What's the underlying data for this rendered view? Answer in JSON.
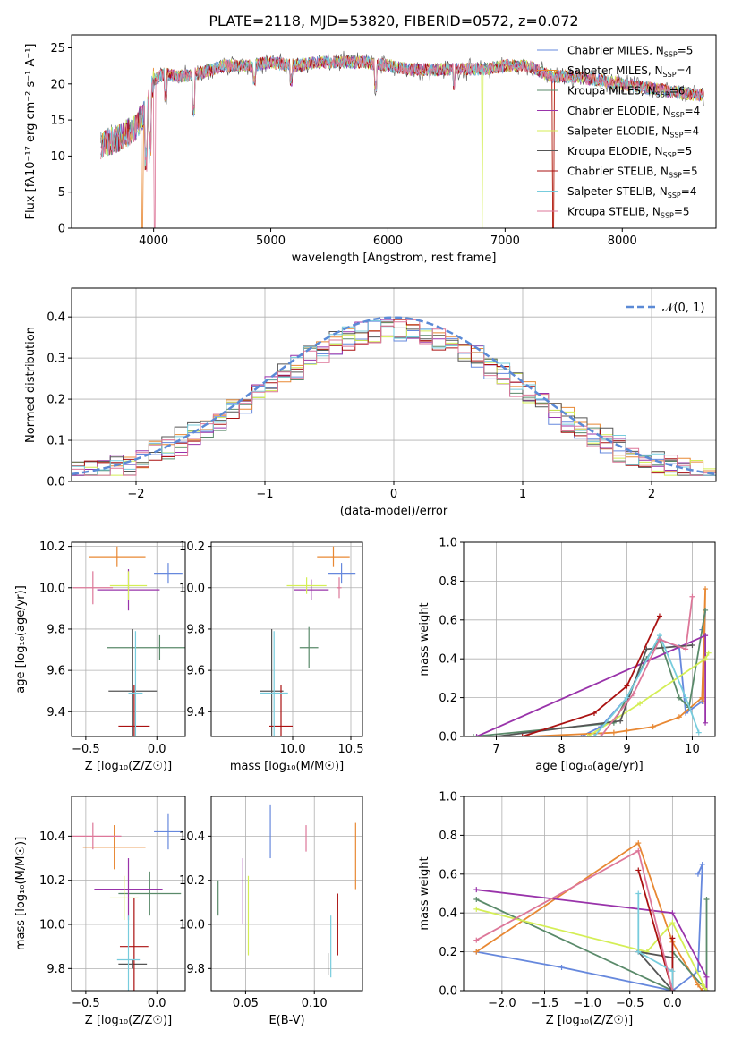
{
  "figure": {
    "title": "PLATE=2118, MJD=53820, FIBERID=0572, z=0.072"
  },
  "colors": [
    "#6688dd",
    "#e88833",
    "#5a8a6a",
    "#9933aa",
    "#d4ee55",
    "#555555",
    "#aa1111",
    "#77ccdd",
    "#dd7799"
  ],
  "chart_data": [
    {
      "type": "line",
      "title": "PLATE=2118, MJD=53820, FIBERID=0572, z=0.072",
      "xlabel": "wavelength [Angstrom, rest frame]",
      "ylabel": "Flux [fλ10⁻¹⁷ erg cm⁻² s⁻¹ A⁻¹]",
      "xlim": [
        3300,
        8800
      ],
      "ylim": [
        0,
        26.8
      ],
      "xticks": [
        4000,
        5000,
        6000,
        7000,
        8000
      ],
      "yticks": [
        0,
        5,
        10,
        15,
        20,
        25
      ],
      "grid": false,
      "legend_position": "top-right",
      "data_envelope": {
        "wavelength": [
          3550,
          3700,
          3850,
          3950,
          4000,
          4100,
          4200,
          4400,
          4600,
          4800,
          5000,
          5200,
          5400,
          5600,
          5800,
          6000,
          6200,
          6400,
          6600,
          6800,
          7000,
          7200,
          7400,
          7600,
          7800,
          8000,
          8200,
          8400,
          8600
        ],
        "flux": [
          11.5,
          12.5,
          14.0,
          17.0,
          20.5,
          21.5,
          21.0,
          21.5,
          22.5,
          22.5,
          23.0,
          22.5,
          23.0,
          23.0,
          23.0,
          22.5,
          22.0,
          22.0,
          22.0,
          22.0,
          22.5,
          22.5,
          21.0,
          21.0,
          20.5,
          20.0,
          19.5,
          19.0,
          18.5
        ]
      },
      "series": [
        {
          "name": "Chabrier MILES",
          "nssp": "5"
        },
        {
          "name": "Salpeter MILES",
          "nssp": "4"
        },
        {
          "name": "Kroupa MILES",
          "nssp": "6"
        },
        {
          "name": "Chabrier ELODIE",
          "nssp": "4"
        },
        {
          "name": "Salpeter ELODIE",
          "nssp": "4"
        },
        {
          "name": "Kroupa ELODIE",
          "nssp": "5"
        },
        {
          "name": "Chabrier STELIB",
          "nssp": "5"
        },
        {
          "name": "Salpeter STELIB",
          "nssp": "4"
        },
        {
          "name": "Kroupa STELIB",
          "nssp": "5"
        }
      ]
    },
    {
      "type": "histogram",
      "xlabel": "(data-model)/error",
      "ylabel": "Normed distribution",
      "xlim": [
        -2.5,
        2.5
      ],
      "ylim": [
        0,
        0.47
      ],
      "xticks": [
        -2,
        -1,
        0,
        1,
        2
      ],
      "yticks": [
        0.0,
        0.1,
        0.2,
        0.3,
        0.4
      ],
      "grid": true,
      "legend_position": "top-right",
      "bin_width": 0.1,
      "bin_centers": [
        -2.45,
        -2.35,
        -2.25,
        -2.15,
        -2.05,
        -1.95,
        -1.85,
        -1.75,
        -1.65,
        -1.55,
        -1.45,
        -1.35,
        -1.25,
        -1.15,
        -1.05,
        -0.95,
        -0.85,
        -0.75,
        -0.65,
        -0.55,
        -0.45,
        -0.35,
        -0.25,
        -0.15,
        -0.05,
        0.05,
        0.15,
        0.25,
        0.35,
        0.45,
        0.55,
        0.65,
        0.75,
        0.85,
        0.95,
        1.05,
        1.15,
        1.25,
        1.35,
        1.45,
        1.55,
        1.65,
        1.75,
        1.85,
        1.95,
        2.05,
        2.15,
        2.25,
        2.35,
        2.45
      ],
      "reference_curve": {
        "name": "𝒩(0, 1)",
        "function": "standard normal pdf"
      },
      "spread": [
        0.03,
        -0.02,
        0.025,
        -0.015,
        0.01,
        -0.03,
        0.02,
        -0.01,
        0.015
      ]
    },
    {
      "type": "scatter",
      "xlabel": "Z [log₁₀(Z/Z☉)]",
      "ylabel": "age  [log₁₀(age/yr)]",
      "xlim": [
        -0.6,
        0.2
      ],
      "ylim": [
        9.28,
        10.22
      ],
      "xticks": [
        -0.5,
        0.0
      ],
      "yticks": [
        9.4,
        9.6,
        9.8,
        10.0,
        10.2
      ],
      "grid": true,
      "points": [
        {
          "x": 0.08,
          "y": 10.07,
          "xerr": 0.1,
          "yerr": 0.05
        },
        {
          "x": -0.28,
          "y": 10.15,
          "xerr": 0.2,
          "yerr": 0.05
        },
        {
          "x": 0.02,
          "y": 9.71,
          "xerr": 0.37,
          "yerr": 0.06
        },
        {
          "x": -0.2,
          "y": 9.99,
          "xerr": 0.22,
          "yerr": 0.1
        },
        {
          "x": -0.2,
          "y": 10.01,
          "xerr": 0.13,
          "yerr": 0.07
        },
        {
          "x": -0.17,
          "y": 9.5,
          "xerr": 0.17,
          "yerr": 0.3
        },
        {
          "x": -0.16,
          "y": 9.33,
          "xerr": 0.11,
          "yerr": 0.2
        },
        {
          "x": -0.15,
          "y": 9.49,
          "xerr": 0.05,
          "yerr": 0.3
        },
        {
          "x": -0.45,
          "y": 10.0,
          "xerr": 0.14,
          "yerr": 0.08
        }
      ]
    },
    {
      "type": "scatter",
      "xlabel": "mass [log₁₀(M/M☉)]",
      "ylabel": "",
      "xlim": [
        9.3,
        10.6
      ],
      "ylim": [
        9.28,
        10.22
      ],
      "xticks": [
        10.0,
        10.5
      ],
      "yticks": [
        9.4,
        9.6,
        9.8,
        10.0,
        10.2
      ],
      "grid": true,
      "points": [
        {
          "x": 10.42,
          "y": 10.07,
          "xerr": 0.12,
          "yerr": 0.05
        },
        {
          "x": 10.35,
          "y": 10.15,
          "xerr": 0.14,
          "yerr": 0.05
        },
        {
          "x": 10.14,
          "y": 9.71,
          "xerr": 0.08,
          "yerr": 0.1
        },
        {
          "x": 10.16,
          "y": 9.99,
          "xerr": 0.15,
          "yerr": 0.05
        },
        {
          "x": 10.12,
          "y": 10.01,
          "xerr": 0.17,
          "yerr": 0.04
        },
        {
          "x": 9.82,
          "y": 9.5,
          "xerr": 0.1,
          "yerr": 0.3
        },
        {
          "x": 9.9,
          "y": 9.33,
          "xerr": 0.1,
          "yerr": 0.2
        },
        {
          "x": 9.84,
          "y": 9.49,
          "xerr": 0.12,
          "yerr": 0.3
        },
        {
          "x": 10.4,
          "y": 10.0,
          "xerr": 0.02,
          "yerr": 0.05
        }
      ]
    },
    {
      "type": "line",
      "xlabel": "age  [log₁₀(age/yr)]",
      "ylabel": "mass weight",
      "xlim": [
        6.5,
        10.35
      ],
      "ylim": [
        0,
        1.0
      ],
      "xticks": [
        7,
        8,
        9,
        10
      ],
      "yticks": [
        0.0,
        0.2,
        0.4,
        0.6,
        0.8,
        1.0
      ],
      "grid": true,
      "series": [
        {
          "x": [
            8.3,
            8.6,
            9.0,
            9.3,
            9.5,
            9.8,
            9.9,
            10.15,
            10.2,
            10.15
          ],
          "y": [
            0.0,
            0.05,
            0.2,
            0.4,
            0.5,
            0.46,
            0.12,
            0.18,
            0.65,
            0.55
          ]
        },
        {
          "x": [
            7.5,
            8.8,
            9.0,
            9.4,
            9.8,
            10.15,
            10.2,
            10.17
          ],
          "y": [
            0.0,
            0.02,
            0.03,
            0.05,
            0.1,
            0.2,
            0.76,
            0.18
          ]
        },
        {
          "x": [
            6.65,
            8.8,
            9.0,
            9.3,
            9.5,
            9.8,
            9.95,
            10.2
          ],
          "y": [
            0.0,
            0.07,
            0.2,
            0.4,
            0.5,
            0.2,
            0.15,
            0.65
          ]
        },
        {
          "x": [
            6.7,
            10.2,
            10.2,
            10.2
          ],
          "y": [
            0.0,
            0.52,
            0.07,
            0.52
          ]
        },
        {
          "x": [
            8.4,
            9.2,
            10.2,
            10.25
          ],
          "y": [
            0.0,
            0.17,
            0.4,
            0.43
          ]
        },
        {
          "x": [
            7.0,
            8.9,
            9.3,
            10.0
          ],
          "y": [
            0.0,
            0.08,
            0.45,
            0.47
          ]
        },
        {
          "x": [
            7.4,
            8.5,
            9.0,
            9.5
          ],
          "y": [
            0.0,
            0.12,
            0.26,
            0.62
          ]
        },
        {
          "x": [
            8.5,
            9.0,
            9.5,
            9.9,
            10.1
          ],
          "y": [
            0.0,
            0.2,
            0.52,
            0.2,
            0.02
          ]
        },
        {
          "x": [
            8.6,
            9.1,
            9.5,
            9.9,
            10.0
          ],
          "y": [
            0.0,
            0.22,
            0.5,
            0.45,
            0.72
          ]
        }
      ]
    },
    {
      "type": "scatter",
      "xlabel": "Z [log₁₀(Z/Z☉)]",
      "ylabel": "mass [log₁₀(M/M☉)]",
      "xlim": [
        -0.6,
        0.2
      ],
      "ylim": [
        9.7,
        10.58
      ],
      "xticks": [
        -0.5,
        0.0
      ],
      "yticks": [
        9.8,
        10.0,
        10.2,
        10.4
      ],
      "grid": true,
      "points": [
        {
          "x": 0.08,
          "y": 10.42,
          "xerr": 0.1,
          "yerr": 0.08
        },
        {
          "x": -0.3,
          "y": 10.35,
          "xerr": 0.22,
          "yerr": 0.1
        },
        {
          "x": -0.05,
          "y": 10.14,
          "xerr": 0.22,
          "yerr": 0.1
        },
        {
          "x": -0.2,
          "y": 10.16,
          "xerr": 0.24,
          "yerr": 0.14
        },
        {
          "x": -0.23,
          "y": 10.12,
          "xerr": 0.1,
          "yerr": 0.1
        },
        {
          "x": -0.17,
          "y": 9.82,
          "xerr": 0.1,
          "yerr": 0.02
        },
        {
          "x": -0.16,
          "y": 9.9,
          "xerr": 0.1,
          "yerr": 0.22
        },
        {
          "x": -0.2,
          "y": 9.84,
          "xerr": 0.08,
          "yerr": 0.2
        },
        {
          "x": -0.45,
          "y": 10.4,
          "xerr": 0.2,
          "yerr": 0.06
        }
      ]
    },
    {
      "type": "scatter",
      "xlabel": "E(B-V)",
      "ylabel": "",
      "xlim": [
        0.025,
        0.135
      ],
      "ylim": [
        9.7,
        10.58
      ],
      "xticks": [
        0.05,
        0.1
      ],
      "yticks": [
        9.8,
        10.0,
        10.2,
        10.4
      ],
      "grid": true,
      "points": [
        {
          "x": 0.068,
          "y": 10.42,
          "xerr": 0.0,
          "yerr": 0.12
        },
        {
          "x": 0.13,
          "y": 10.31,
          "xerr": 0.0,
          "yerr": 0.15
        },
        {
          "x": 0.03,
          "y": 10.12,
          "xerr": 0.0,
          "yerr": 0.08
        },
        {
          "x": 0.048,
          "y": 10.15,
          "xerr": 0.0,
          "yerr": 0.15
        },
        {
          "x": 0.052,
          "y": 10.04,
          "xerr": 0.0,
          "yerr": 0.18
        },
        {
          "x": 0.11,
          "y": 9.82,
          "xerr": 0.0,
          "yerr": 0.05
        },
        {
          "x": 0.117,
          "y": 10.0,
          "xerr": 0.0,
          "yerr": 0.14
        },
        {
          "x": 0.112,
          "y": 9.9,
          "xerr": 0.0,
          "yerr": 0.14
        },
        {
          "x": 0.094,
          "y": 10.39,
          "xerr": 0.0,
          "yerr": 0.06
        }
      ]
    },
    {
      "type": "line",
      "xlabel": "Z [log₁₀(Z/Z☉)]",
      "ylabel": "mass weight",
      "xlim": [
        -2.45,
        0.5
      ],
      "ylim": [
        0,
        1.0
      ],
      "xticks": [
        -2.0,
        -1.5,
        -1.0,
        -0.5,
        0.0
      ],
      "yticks": [
        0.0,
        0.2,
        0.4,
        0.6,
        0.8,
        1.0
      ],
      "grid": true,
      "series": [
        {
          "x": [
            -2.3,
            -1.3,
            0.0,
            0.3,
            0.35,
            0.3
          ],
          "y": [
            0.2,
            0.12,
            0.0,
            0.1,
            0.65,
            0.6
          ]
        },
        {
          "x": [
            -2.3,
            -0.4,
            0.0,
            0.3,
            0.35
          ],
          "y": [
            0.2,
            0.76,
            0.25,
            0.03,
            0.0
          ]
        },
        {
          "x": [
            -2.3,
            0.0,
            0.0,
            0.4,
            0.4
          ],
          "y": [
            0.47,
            0.0,
            0.2,
            0.0,
            0.47
          ]
        },
        {
          "x": [
            -2.3,
            0.0,
            0.4,
            0.4
          ],
          "y": [
            0.52,
            0.4,
            0.07,
            0.0
          ]
        },
        {
          "x": [
            -2.3,
            -0.3,
            0.0,
            0.4,
            0.35
          ],
          "y": [
            0.42,
            0.2,
            0.35,
            0.0,
            0.03
          ]
        },
        {
          "x": [
            0.0,
            -0.4,
            0.0
          ],
          "y": [
            0.0,
            0.2,
            0.17
          ]
        },
        {
          "x": [
            -0.4,
            0.0,
            0.0,
            0.0
          ],
          "y": [
            0.62,
            0.0,
            0.27,
            0.0
          ]
        },
        {
          "x": [
            -0.4,
            -0.4,
            0.0,
            0.0
          ],
          "y": [
            0.5,
            0.2,
            0.1,
            0.0
          ]
        },
        {
          "x": [
            -2.3,
            -0.4,
            0.0
          ],
          "y": [
            0.26,
            0.72,
            0.0
          ]
        }
      ]
    }
  ]
}
